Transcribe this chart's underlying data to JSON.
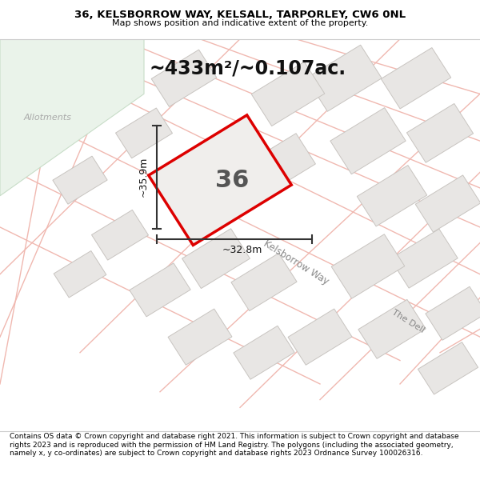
{
  "title_line1": "36, KELSBORROW WAY, KELSALL, TARPORLEY, CW6 0NL",
  "title_line2": "Map shows position and indicative extent of the property.",
  "area_label": "~433m²/~0.107ac.",
  "plot_number": "36",
  "dim_width": "~32.8m",
  "dim_height": "~35.9m",
  "road_label": "Kelsborrow Way",
  "road_label2": "The Dell",
  "allotments_label": "Allotments",
  "footer_text": "Contains OS data © Crown copyright and database right 2021. This information is subject to Crown copyright and database rights 2023 and is reproduced with the permission of HM Land Registry. The polygons (including the associated geometry, namely x, y co-ordinates) are subject to Crown copyright and database rights 2023 Ordnance Survey 100026316.",
  "map_bg": "#ffffff",
  "allotment_color": "#eaf3ea",
  "allotment_edge": "#c8ddc8",
  "plot_fill": "#f0eeec",
  "plot_border": "#dd0000",
  "road_line_color": "#f0b8b0",
  "building_fill": "#e8e6e4",
  "building_edge": "#c8c4c0",
  "dim_line_color": "#333333",
  "footer_bg": "#ffffff",
  "title_bg": "#ffffff",
  "road_label_color": "#888888",
  "allotments_label_color": "#aaaaaa"
}
